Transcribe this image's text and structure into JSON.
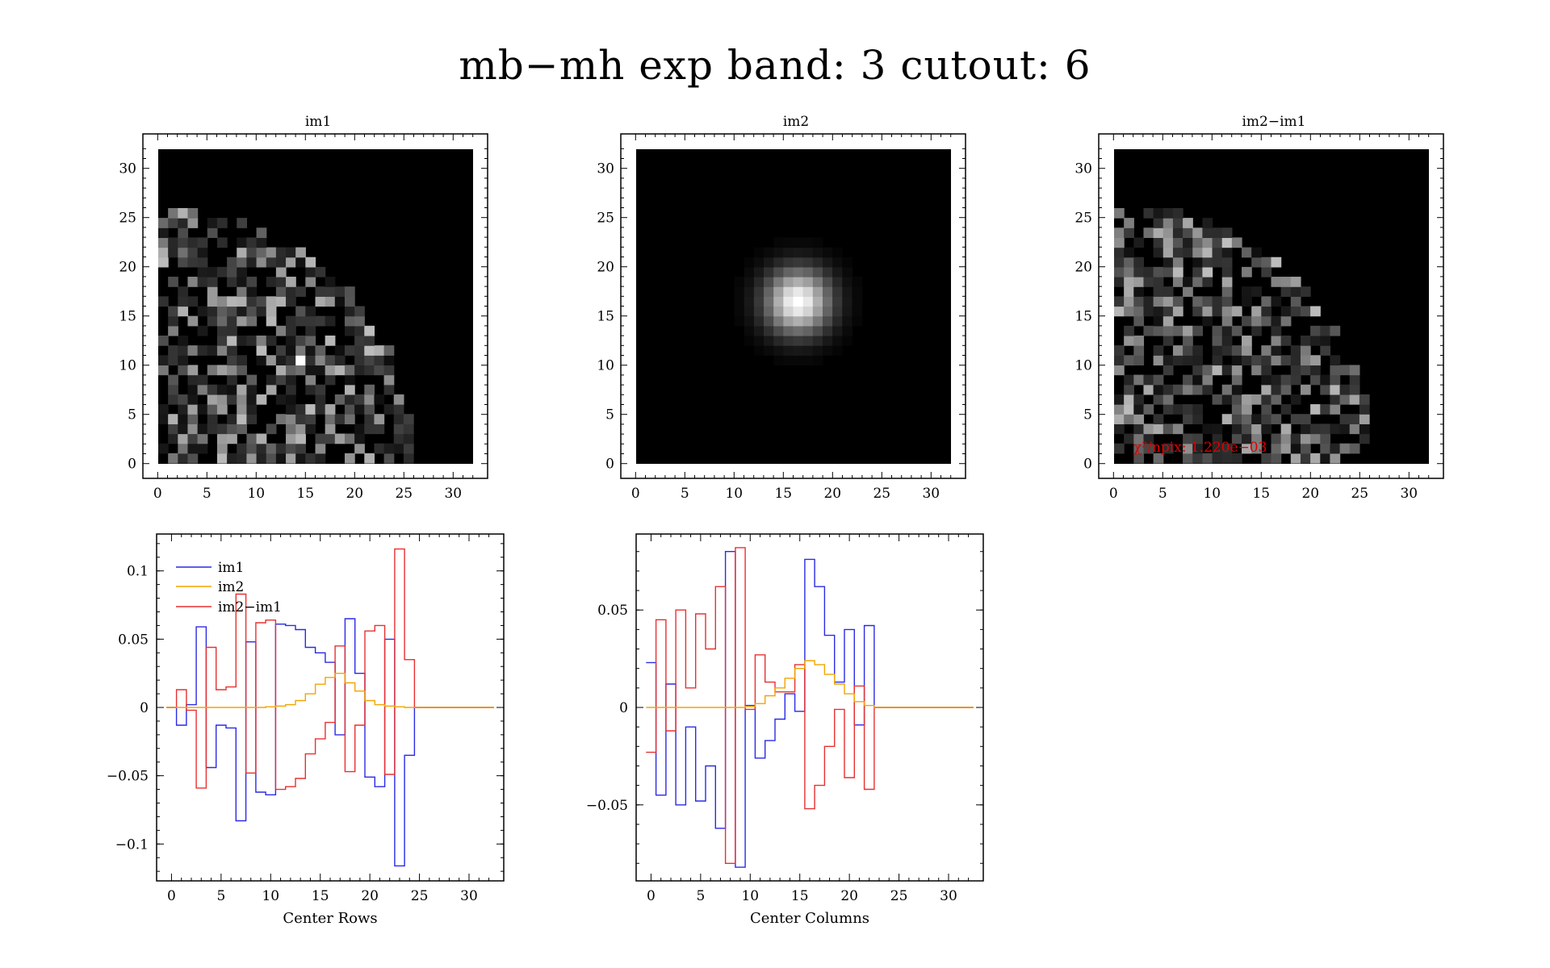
{
  "title": "mb−mh exp band: 3 cutout: 6",
  "colors": {
    "im1": "#2a2ae6",
    "im2": "#f2a500",
    "diff": "#e83030",
    "chi": "#e00000"
  },
  "images": [
    {
      "key": "im1",
      "title": "im1",
      "pattern": "noise",
      "seed": 7,
      "limit": 25.5,
      "hot": [
        [
          14,
          10
        ]
      ]
    },
    {
      "key": "im2",
      "title": "im2",
      "pattern": "gaussian",
      "center": [
        16,
        16
      ],
      "sigma": 2.3
    },
    {
      "key": "diff",
      "title": "im2−im1",
      "pattern": "noise",
      "seed": 19,
      "limit": 25.8,
      "hot": [
        [
          13,
          23
        ]
      ],
      "annotation": "χ²/npix: 1.220e−03"
    }
  ],
  "image_axes": {
    "xlim": [
      -1.5,
      33.5
    ],
    "ylim": [
      -1.5,
      33.5
    ],
    "ticks": [
      "0",
      "5",
      "10",
      "15",
      "20",
      "25",
      "30"
    ]
  },
  "chart_data": [
    {
      "type": "line",
      "step": true,
      "title": "",
      "xlabel": "Center Rows",
      "ylabel": "",
      "xlim": [
        -1.5,
        33.5
      ],
      "ylim": [
        -0.127,
        0.127
      ],
      "xticks": [
        "0",
        "5",
        "10",
        "15",
        "20",
        "25",
        "30"
      ],
      "yticks": [
        "−0.1",
        "−0.05",
        "0",
        "0.05",
        "0.1"
      ],
      "legend": "top-left",
      "x": [
        0,
        1,
        2,
        3,
        4,
        5,
        6,
        7,
        8,
        9,
        10,
        11,
        12,
        13,
        14,
        15,
        16,
        17,
        18,
        19,
        20,
        21,
        22,
        23,
        24,
        25,
        26,
        27,
        28,
        29,
        30,
        31,
        32
      ],
      "series": [
        {
          "name": "im1",
          "color_key": "im1",
          "values": [
            0,
            -0.013,
            0.002,
            0.059,
            -0.044,
            -0.013,
            -0.015,
            -0.083,
            0.048,
            -0.062,
            -0.064,
            0.061,
            0.06,
            0.057,
            0.044,
            0.04,
            0.033,
            -0.02,
            0.065,
            0.025,
            -0.051,
            -0.058,
            0.05,
            -0.116,
            -0.035,
            0,
            0,
            0,
            0,
            0,
            0,
            0,
            0
          ]
        },
        {
          "name": "im2",
          "color_key": "im2",
          "values": [
            0,
            0,
            0,
            0,
            0,
            0,
            0,
            0,
            0,
            0,
            0.0005,
            0.001,
            0.002,
            0.005,
            0.01,
            0.017,
            0.022,
            0.025,
            0.018,
            0.012,
            0.005,
            0.002,
            0.001,
            0.0005,
            0,
            0,
            0,
            0,
            0,
            0,
            0,
            0,
            0
          ]
        },
        {
          "name": "im2−im1",
          "color_key": "diff",
          "values": [
            0,
            0.013,
            -0.002,
            -0.059,
            0.044,
            0.013,
            0.015,
            0.083,
            -0.048,
            0.062,
            0.064,
            -0.06,
            -0.058,
            -0.052,
            -0.034,
            -0.023,
            -0.011,
            0.045,
            -0.047,
            -0.013,
            0.056,
            0.06,
            -0.049,
            0.116,
            0.035,
            0,
            0,
            0,
            0,
            0,
            0,
            0,
            0
          ]
        }
      ]
    },
    {
      "type": "line",
      "step": true,
      "title": "",
      "xlabel": "Center Columns",
      "ylabel": "",
      "xlim": [
        -1.5,
        33.5
      ],
      "ylim": [
        -0.089,
        0.089
      ],
      "xticks": [
        "0",
        "5",
        "10",
        "15",
        "20",
        "25",
        "30"
      ],
      "yticks": [
        "−0.05",
        "0",
        "0.05"
      ],
      "legend": "",
      "x": [
        0,
        1,
        2,
        3,
        4,
        5,
        6,
        7,
        8,
        9,
        10,
        11,
        12,
        13,
        14,
        15,
        16,
        17,
        18,
        19,
        20,
        21,
        22,
        23,
        24,
        25,
        26,
        27,
        28,
        29,
        30,
        31,
        32
      ],
      "series": [
        {
          "name": "im1",
          "color_key": "im1",
          "values": [
            0.023,
            -0.045,
            0.012,
            -0.05,
            -0.01,
            -0.048,
            -0.03,
            -0.062,
            0.08,
            -0.082,
            0.001,
            -0.026,
            -0.017,
            -0.006,
            0.007,
            -0.002,
            0.076,
            0.062,
            0.037,
            0.013,
            0.04,
            -0.009,
            0.042,
            0,
            0,
            0,
            0,
            0,
            0,
            0,
            0,
            0,
            0
          ]
        },
        {
          "name": "im2",
          "color_key": "im2",
          "values": [
            0,
            0,
            0,
            0,
            0,
            0,
            0,
            0,
            0,
            0,
            0.0005,
            0.002,
            0.006,
            0.01,
            0.015,
            0.02,
            0.024,
            0.022,
            0.017,
            0.012,
            0.007,
            0.003,
            0.001,
            0,
            0,
            0,
            0,
            0,
            0,
            0,
            0,
            0,
            0
          ]
        },
        {
          "name": "im2−im1",
          "color_key": "diff",
          "values": [
            -0.023,
            0.045,
            -0.012,
            0.05,
            0.01,
            0.048,
            0.03,
            0.062,
            -0.08,
            0.082,
            -0.001,
            0.027,
            0.013,
            0.008,
            0.008,
            0.022,
            -0.052,
            -0.04,
            -0.02,
            -0.001,
            -0.036,
            0.011,
            -0.042,
            0,
            0,
            0,
            0,
            0,
            0,
            0,
            0,
            0,
            0
          ]
        }
      ]
    }
  ]
}
